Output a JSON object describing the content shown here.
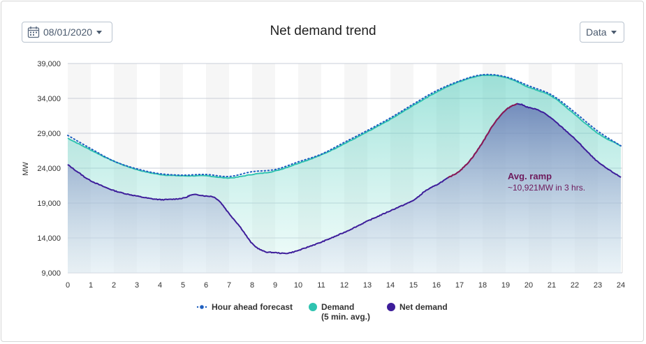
{
  "header": {
    "date": "08/01/2020",
    "title": "Net demand trend",
    "data_button": "Data"
  },
  "legend": {
    "forecast": "Hour ahead forecast",
    "demand": "Demand",
    "demand_sub": "(5 min. avg.)",
    "net": "Net demand"
  },
  "annotation": {
    "title": "Avg. ramp",
    "text": "~10,921MW in 3 hrs."
  },
  "colors": {
    "demand": "#2fc3b0",
    "forecast": "#1f5fbf",
    "net": "#3d1d9a",
    "ramp": "#8b1a54"
  },
  "chart_data": {
    "type": "area",
    "ylabel": "MW",
    "ylim": [
      9000,
      39000
    ],
    "yticks": [
      "9,000",
      "14,000",
      "19,000",
      "24,000",
      "29,000",
      "34,000",
      "39,000"
    ],
    "xlim": [
      0,
      24
    ],
    "xticks": [
      "0",
      "1",
      "2",
      "3",
      "4",
      "5",
      "6",
      "7",
      "8",
      "9",
      "10",
      "11",
      "12",
      "13",
      "14",
      "15",
      "16",
      "17",
      "18",
      "19",
      "20",
      "21",
      "22",
      "23",
      "24"
    ],
    "grid": true,
    "legend_position": "bottom",
    "series": [
      {
        "name": "Hour ahead forecast",
        "x": [
          0,
          1,
          2,
          3,
          4,
          5,
          6,
          7,
          8,
          9,
          10,
          11,
          12,
          13,
          14,
          15,
          16,
          17,
          18,
          19,
          20,
          21,
          22,
          23,
          24
        ],
        "y": [
          28700,
          26800,
          25000,
          23900,
          23200,
          23000,
          23100,
          22800,
          23500,
          23800,
          24900,
          26000,
          27700,
          29400,
          31200,
          33200,
          35100,
          36500,
          37400,
          37100,
          35800,
          34500,
          32000,
          29300,
          27200
        ]
      },
      {
        "name": "Demand",
        "x": [
          0,
          1,
          2,
          3,
          4,
          5,
          6,
          7,
          8,
          9,
          10,
          11,
          12,
          13,
          14,
          15,
          16,
          17,
          18,
          19,
          20,
          21,
          22,
          23,
          24
        ],
        "y": [
          28300,
          26600,
          25000,
          23800,
          23100,
          22900,
          22900,
          22600,
          23100,
          23600,
          24700,
          25900,
          27500,
          29200,
          31000,
          33000,
          34900,
          36400,
          37300,
          37000,
          35600,
          34300,
          31700,
          29000,
          27200
        ]
      },
      {
        "name": "Net demand",
        "x": [
          0,
          0.5,
          1,
          2,
          3,
          4,
          5,
          5.3,
          5.6,
          6,
          6.3,
          6.6,
          7,
          7.5,
          8,
          8.5,
          9,
          9.5,
          10,
          10.5,
          11,
          12,
          13,
          14,
          15,
          15.5,
          16,
          16.5,
          17,
          17.5,
          18,
          18.5,
          19,
          19.5,
          20,
          20.5,
          21,
          22,
          23,
          24
        ],
        "y": [
          24500,
          23300,
          22200,
          20800,
          20000,
          19500,
          19700,
          20100,
          20200,
          20000,
          19900,
          19200,
          17500,
          15500,
          13200,
          12100,
          11900,
          11800,
          12200,
          12800,
          13400,
          14800,
          16400,
          17900,
          19400,
          20700,
          21600,
          22600,
          23600,
          25300,
          27700,
          30400,
          32300,
          33200,
          32700,
          32200,
          31100,
          28200,
          24900,
          22700
        ]
      }
    ]
  }
}
